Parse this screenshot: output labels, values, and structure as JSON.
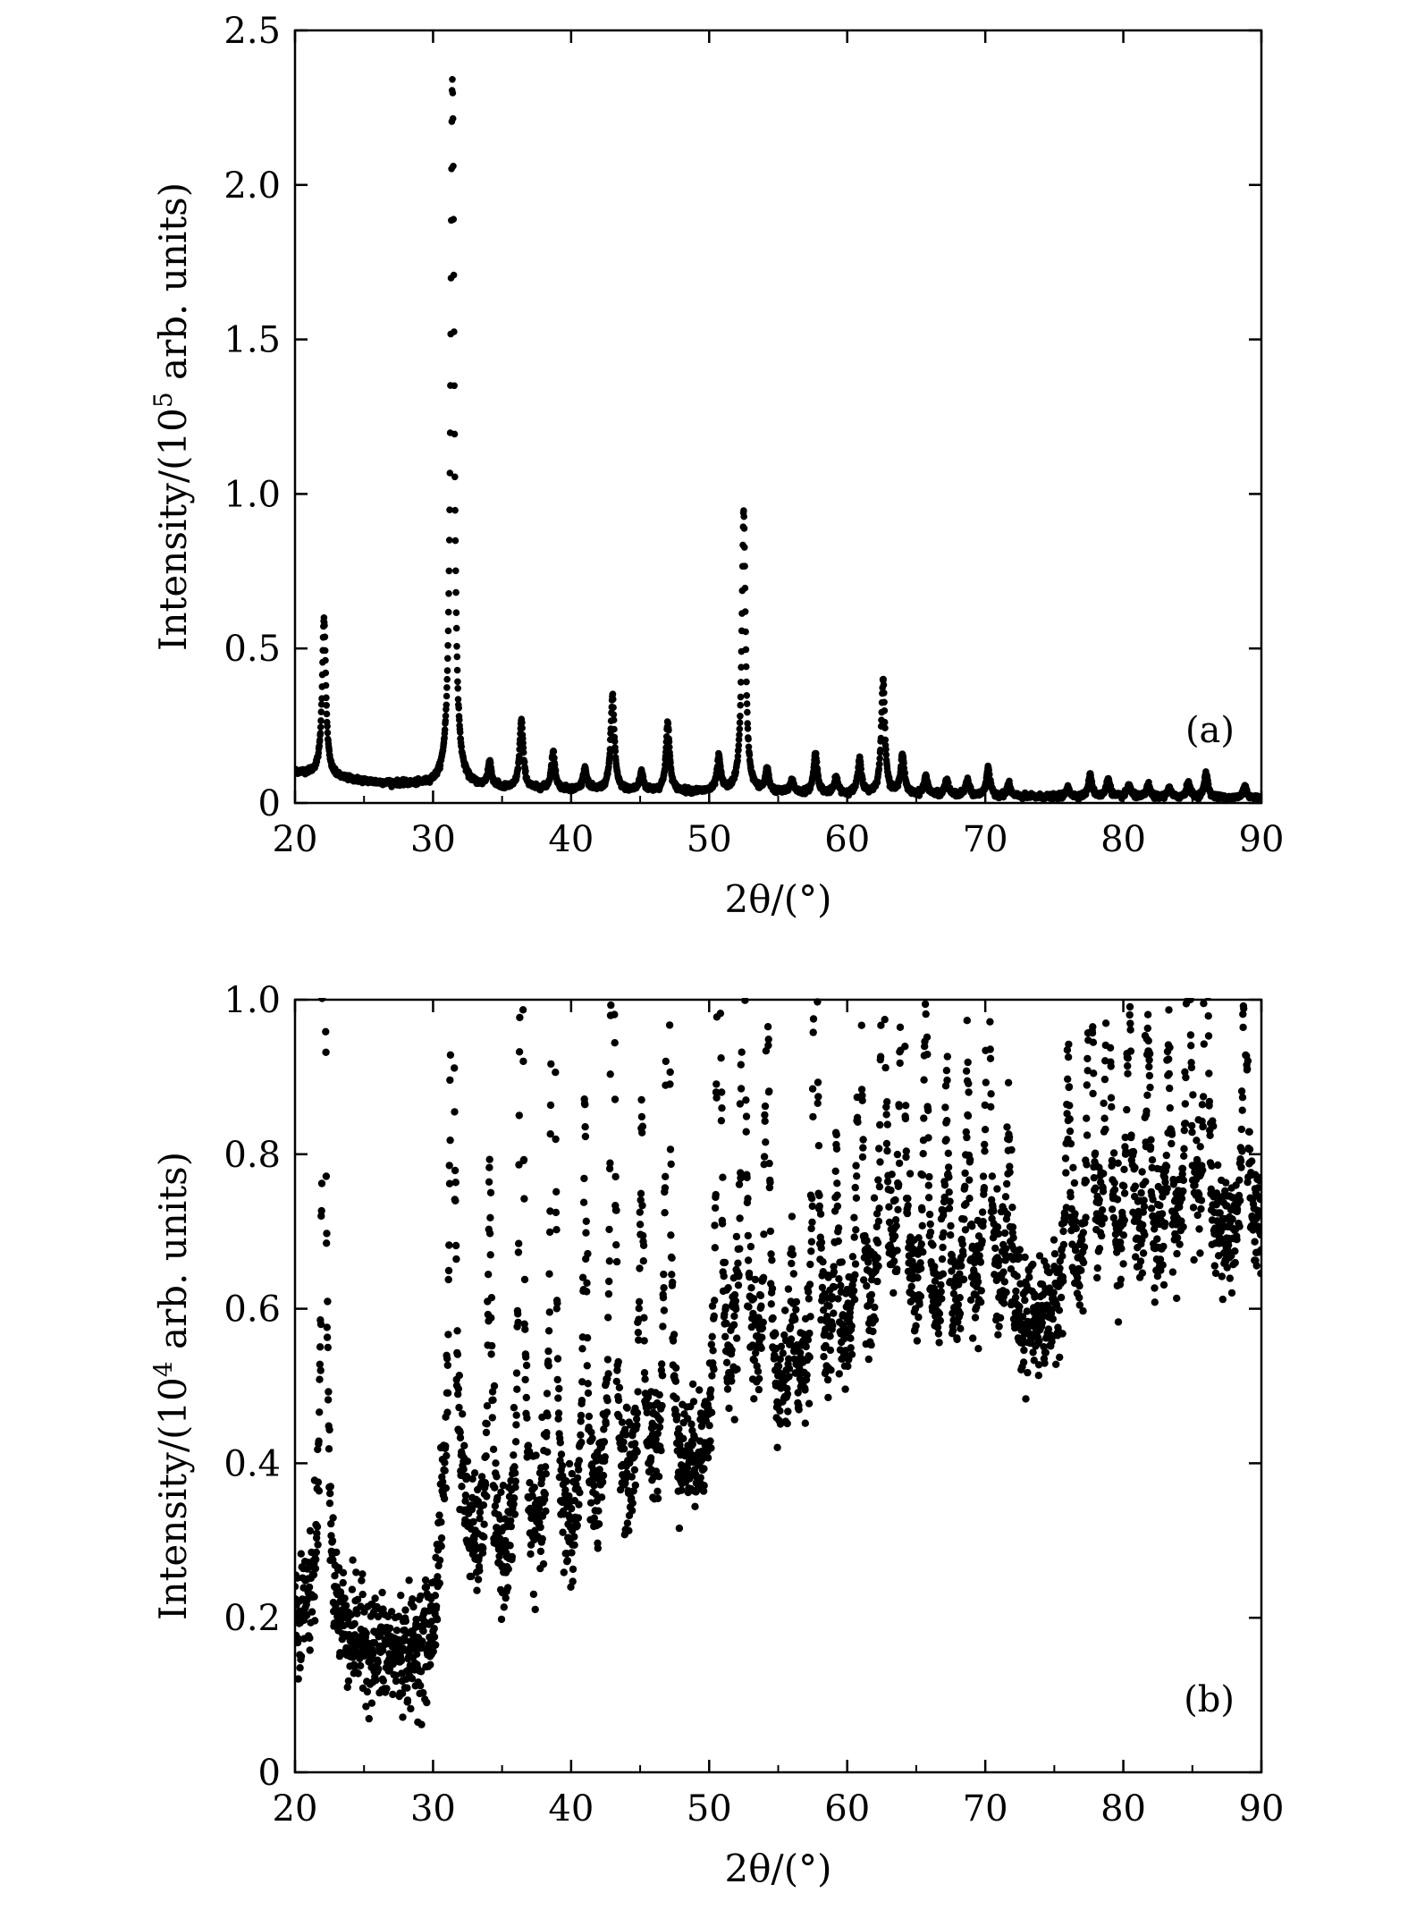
{
  "figure": {
    "colors": {
      "marker": "#000000",
      "axes": "#000000",
      "background": "#ffffff"
    }
  },
  "chart_data": [
    {
      "type": "scatter",
      "panel_label": "(a)",
      "xlabel": "2θ/(°)",
      "ylabel_parts": {
        "before": "Intensity/(10",
        "sup": "5",
        "after": " arb. units)"
      },
      "xlim": [
        20,
        90
      ],
      "ylim": [
        0,
        2.5
      ],
      "xticks": [
        20,
        30,
        40,
        50,
        60,
        70,
        80,
        90
      ],
      "yticks": [
        0,
        0.5,
        1.0,
        1.5,
        2.0,
        2.5
      ],
      "ytick_labels": [
        "0",
        "0.5",
        "1.0",
        "1.5",
        "2.0",
        "2.5"
      ],
      "grid": false,
      "legend": "none",
      "background": [
        [
          20,
          0.1
        ],
        [
          22,
          0.09
        ],
        [
          23,
          0.08
        ],
        [
          26,
          0.065
        ],
        [
          30,
          0.055
        ],
        [
          35,
          0.045
        ],
        [
          45,
          0.038
        ],
        [
          55,
          0.032
        ],
        [
          65,
          0.025
        ],
        [
          72,
          0.02
        ],
        [
          80,
          0.018
        ],
        [
          90,
          0.015
        ]
      ],
      "peaks": [
        {
          "x": 22.1,
          "height": 0.51
        },
        {
          "x": 31.4,
          "height": 2.29
        },
        {
          "x": 34.1,
          "height": 0.08
        },
        {
          "x": 36.4,
          "height": 0.22
        },
        {
          "x": 38.7,
          "height": 0.12
        },
        {
          "x": 41.0,
          "height": 0.07
        },
        {
          "x": 43.0,
          "height": 0.31
        },
        {
          "x": 45.1,
          "height": 0.06
        },
        {
          "x": 47.0,
          "height": 0.22
        },
        {
          "x": 50.7,
          "height": 0.11
        },
        {
          "x": 52.5,
          "height": 0.91
        },
        {
          "x": 54.2,
          "height": 0.07
        },
        {
          "x": 56.0,
          "height": 0.04
        },
        {
          "x": 57.7,
          "height": 0.13
        },
        {
          "x": 59.2,
          "height": 0.05
        },
        {
          "x": 60.9,
          "height": 0.11
        },
        {
          "x": 62.6,
          "height": 0.37
        },
        {
          "x": 64.0,
          "height": 0.13
        },
        {
          "x": 65.7,
          "height": 0.06
        },
        {
          "x": 67.2,
          "height": 0.05
        },
        {
          "x": 68.7,
          "height": 0.05
        },
        {
          "x": 70.2,
          "height": 0.09
        },
        {
          "x": 71.7,
          "height": 0.04
        },
        {
          "x": 76.0,
          "height": 0.03
        },
        {
          "x": 77.6,
          "height": 0.07
        },
        {
          "x": 78.9,
          "height": 0.06
        },
        {
          "x": 80.4,
          "height": 0.04
        },
        {
          "x": 81.8,
          "height": 0.04
        },
        {
          "x": 83.3,
          "height": 0.03
        },
        {
          "x": 84.7,
          "height": 0.05
        },
        {
          "x": 86.0,
          "height": 0.08
        },
        {
          "x": 88.8,
          "height": 0.04
        }
      ]
    },
    {
      "type": "scatter",
      "panel_label": "(b)",
      "xlabel": "2θ/(°)",
      "ylabel_parts": {
        "before": "Intensity/(10",
        "sup": "4",
        "after": " arb. units)"
      },
      "xlim": [
        20,
        90
      ],
      "ylim": [
        0,
        1.0
      ],
      "xticks": [
        20,
        30,
        40,
        50,
        60,
        70,
        80,
        90
      ],
      "yticks": [
        0,
        0.2,
        0.4,
        0.6,
        0.8,
        1.0
      ],
      "ytick_labels": [
        "0",
        "0.2",
        "0.4",
        "0.6",
        "0.8",
        "1.0"
      ],
      "grid": false,
      "legend": "none",
      "background": [
        [
          20,
          0.2
        ],
        [
          22,
          0.2
        ],
        [
          24,
          0.17
        ],
        [
          26.5,
          0.15
        ],
        [
          28.5,
          0.15
        ],
        [
          30,
          0.17
        ],
        [
          30.7,
          0.3
        ],
        [
          32,
          0.33
        ],
        [
          33,
          0.27
        ],
        [
          35,
          0.25
        ],
        [
          40,
          0.28
        ],
        [
          45,
          0.35
        ],
        [
          50,
          0.4
        ],
        [
          52,
          0.5
        ],
        [
          55,
          0.46
        ],
        [
          60,
          0.52
        ],
        [
          63,
          0.6
        ],
        [
          66,
          0.55
        ],
        [
          70,
          0.6
        ],
        [
          73,
          0.57
        ],
        [
          76,
          0.6
        ],
        [
          80,
          0.64
        ],
        [
          85,
          0.67
        ],
        [
          90,
          0.69
        ]
      ],
      "peaks": [
        {
          "x": 22.1,
          "height": 0.96
        },
        {
          "x": 31.4,
          "height": 1.0
        },
        {
          "x": 34.1,
          "height": 0.55
        },
        {
          "x": 36.4,
          "height": 0.93
        },
        {
          "x": 38.7,
          "height": 1.0
        },
        {
          "x": 41.0,
          "height": 0.6
        },
        {
          "x": 43.0,
          "height": 0.98
        },
        {
          "x": 45.1,
          "height": 0.65
        },
        {
          "x": 47.0,
          "height": 1.0
        },
        {
          "x": 50.7,
          "height": 1.0
        },
        {
          "x": 52.5,
          "height": 1.0
        },
        {
          "x": 54.2,
          "height": 0.86
        },
        {
          "x": 56.0,
          "height": 0.57
        },
        {
          "x": 57.7,
          "height": 1.0
        },
        {
          "x": 59.2,
          "height": 0.66
        },
        {
          "x": 60.9,
          "height": 0.96
        },
        {
          "x": 62.6,
          "height": 1.0
        },
        {
          "x": 64.0,
          "height": 1.0
        },
        {
          "x": 65.7,
          "height": 0.85
        },
        {
          "x": 67.2,
          "height": 0.76
        },
        {
          "x": 68.7,
          "height": 0.76
        },
        {
          "x": 70.2,
          "height": 1.0
        },
        {
          "x": 71.7,
          "height": 0.72
        },
        {
          "x": 76.0,
          "height": 0.8
        },
        {
          "x": 77.6,
          "height": 1.0
        },
        {
          "x": 78.9,
          "height": 1.0
        },
        {
          "x": 80.4,
          "height": 0.88
        },
        {
          "x": 81.8,
          "height": 0.85
        },
        {
          "x": 83.3,
          "height": 0.82
        },
        {
          "x": 84.7,
          "height": 1.0
        },
        {
          "x": 86.0,
          "height": 1.0
        },
        {
          "x": 88.8,
          "height": 0.92
        }
      ]
    }
  ]
}
